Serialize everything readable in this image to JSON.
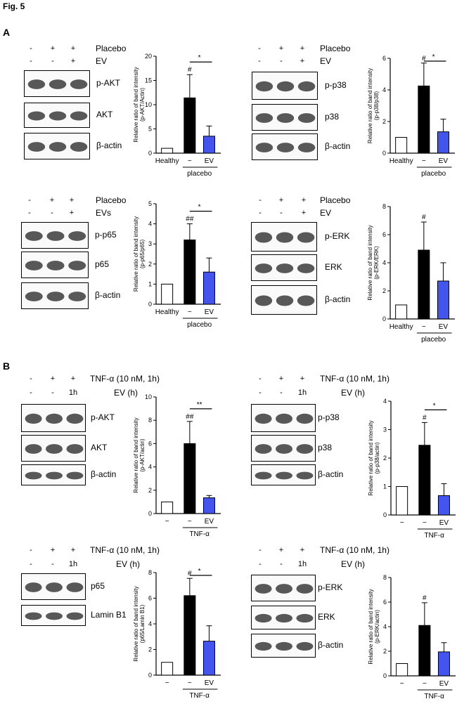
{
  "figure_title": "Fig. 5",
  "sections": {
    "a": "A",
    "b": "B"
  },
  "colors": {
    "healthy": "#ffffff",
    "placebo": "#000000",
    "ev": "#4455ee"
  },
  "panels": [
    {
      "id": "A1",
      "tr_rows": [
        [
          "-",
          "+",
          "+"
        ],
        [
          "-",
          "-",
          "+"
        ]
      ],
      "tr_labels": [
        "Placebo",
        "EV"
      ],
      "blots": [
        "p-AKT",
        "AKT",
        "β-actin"
      ],
      "chart": {
        "ylabel": [
          "Relative ratio of band intensity",
          "(p-AKT/Actin)"
        ],
        "ylim": [
          0,
          20
        ],
        "ticks": [
          "0",
          "5",
          "10",
          "15",
          "20"
        ],
        "values": [
          1,
          11.4,
          3.5
        ],
        "errors": [
          0,
          4.8,
          2.1
        ],
        "marks": [
          "",
          "#",
          ""
        ],
        "sig": "*",
        "xlabels": [
          "Healthy",
          "−",
          "EV"
        ],
        "group": "placebo"
      }
    },
    {
      "id": "A2",
      "tr_rows": [
        [
          "-",
          "+",
          "+"
        ],
        [
          "-",
          "-",
          "+"
        ]
      ],
      "tr_labels": [
        "Placebo",
        "EV"
      ],
      "blots": [
        "p-p38",
        "p38",
        "β-actin"
      ],
      "chart": {
        "ylabel": [
          "Relative ratio of band intensity",
          "(p-p38/p38)"
        ],
        "ylim": [
          0,
          6
        ],
        "ticks": [
          "0",
          "2",
          "4",
          "6"
        ],
        "values": [
          1,
          4.25,
          1.35
        ],
        "errors": [
          0,
          1.45,
          0.8
        ],
        "marks": [
          "",
          "#",
          ""
        ],
        "sig": "*",
        "xlabels": [
          "Healthy",
          "−",
          "EV"
        ],
        "group": "placebo"
      }
    },
    {
      "id": "A3",
      "tr_rows": [
        [
          "-",
          "+",
          "+"
        ],
        [
          "-",
          "-",
          "+"
        ]
      ],
      "tr_labels": [
        "Placebo",
        "EVs"
      ],
      "blots": [
        "p-p65",
        "p65",
        "β-actin"
      ],
      "chart": {
        "ylabel": [
          "Relative ratio of band intensity",
          "(p-p65/p65)"
        ],
        "ylim": [
          0,
          5
        ],
        "ticks": [
          "0",
          "1",
          "2",
          "3",
          "4",
          "5"
        ],
        "values": [
          1,
          3.2,
          1.6
        ],
        "errors": [
          0,
          0.8,
          0.7
        ],
        "marks": [
          "",
          "##",
          ""
        ],
        "sig": "*",
        "xlabels": [
          "Healthy",
          "−",
          "EV"
        ],
        "group": "placebo"
      }
    },
    {
      "id": "A4",
      "tr_rows": [
        [
          "-",
          "+",
          "+"
        ],
        [
          "-",
          "-",
          "+"
        ]
      ],
      "tr_labels": [
        "Placebo",
        "EV"
      ],
      "blots": [
        "p-ERK",
        "ERK",
        "β-actin"
      ],
      "chart": {
        "ylabel": [
          "Relative ratio of band intensity",
          "(p-ERK/ERK)"
        ],
        "ylim": [
          0,
          8
        ],
        "ticks": [
          "0",
          "2",
          "4",
          "6",
          "8"
        ],
        "values": [
          1,
          4.9,
          2.7
        ],
        "errors": [
          0,
          2.0,
          1.3
        ],
        "marks": [
          "",
          "#",
          ""
        ],
        "sig": "",
        "xlabels": [
          "Healthy",
          "−",
          "EV"
        ],
        "group": "placebo"
      }
    },
    {
      "id": "B1",
      "tr_rows": [
        [
          "-",
          "+",
          "+"
        ],
        [
          "-",
          "-",
          "1h"
        ]
      ],
      "tr_labels": [
        "TNF-α (10 nM, 1h)",
        "EV (h)"
      ],
      "blots": [
        "p-AKT",
        "AKT",
        "β-actin"
      ],
      "chart": {
        "ylabel": [
          "Relative ratio of band intensity",
          "(p-AKT/actin)"
        ],
        "ylim": [
          0,
          10
        ],
        "ticks": [
          "0",
          "2",
          "4",
          "6",
          "8",
          "10"
        ],
        "values": [
          1,
          6.0,
          1.35
        ],
        "errors": [
          0,
          1.9,
          0.2
        ],
        "marks": [
          "",
          "##",
          ""
        ],
        "sig": "**",
        "xlabels": [
          "−",
          "−",
          "EV"
        ],
        "group": "TNF-α"
      }
    },
    {
      "id": "B2",
      "tr_rows": [
        [
          "-",
          "+",
          "+"
        ],
        [
          "-",
          "-",
          "1h"
        ]
      ],
      "tr_labels": [
        "TNF-α (10 nM, 1h)",
        "EV (h)"
      ],
      "blots": [
        "p-p38",
        "p38",
        "β-actin"
      ],
      "chart": {
        "ylabel": [
          "Relative ratio of band intensity",
          "(p-p38/actin)"
        ],
        "ylim": [
          0,
          4
        ],
        "ticks": [
          "0",
          "1",
          "2",
          "3",
          "4"
        ],
        "values": [
          1,
          2.45,
          0.68
        ],
        "errors": [
          0,
          0.8,
          0.42
        ],
        "marks": [
          "",
          "#",
          ""
        ],
        "sig": "*",
        "xlabels": [
          "−",
          "−",
          "EV"
        ],
        "group": "TNF-α"
      }
    },
    {
      "id": "B3",
      "tr_rows": [
        [
          "-",
          "+",
          "+"
        ],
        [
          "-",
          "-",
          "1h"
        ]
      ],
      "tr_labels": [
        "TNF-α (10 nM, 1h)",
        "EV (h)"
      ],
      "blots": [
        "p65",
        "Lamin B1"
      ],
      "chart": {
        "ylabel": [
          "Relative ratio of band intensity",
          "(p65/Lamin B1)"
        ],
        "ylim": [
          0,
          8
        ],
        "ticks": [
          "0",
          "2",
          "4",
          "6",
          "8"
        ],
        "values": [
          1,
          6.2,
          2.65
        ],
        "errors": [
          0,
          1.35,
          1.2
        ],
        "marks": [
          "",
          "#",
          ""
        ],
        "sig": "*",
        "xlabels": [
          "−",
          "−",
          "EV"
        ],
        "group": "TNF-α"
      }
    },
    {
      "id": "B4",
      "tr_rows": [
        [
          "-",
          "+",
          "+"
        ],
        [
          "-",
          "-",
          "1h"
        ]
      ],
      "tr_labels": [
        "TNF-α (10 nM, 1h)",
        "EV (h)"
      ],
      "blots": [
        "p-ERK",
        "ERK",
        "β-actin"
      ],
      "chart": {
        "ylabel": [
          "Relative ratio of band intensity",
          "(p-ERK/actin)"
        ],
        "ylim": [
          0,
          8
        ],
        "ticks": [
          "0",
          "2",
          "4",
          "6",
          "8"
        ],
        "values": [
          1,
          4.1,
          1.95
        ],
        "errors": [
          0,
          1.85,
          0.75
        ],
        "marks": [
          "",
          "#",
          ""
        ],
        "sig": "",
        "xlabels": [
          "−",
          "−",
          "EV"
        ],
        "group": "TNF-α"
      }
    }
  ],
  "chart_data": [
    {
      "type": "bar",
      "panel": "A1",
      "categories": [
        "Healthy",
        "placebo −",
        "placebo EV"
      ],
      "values": [
        1,
        11.4,
        3.5
      ],
      "errors": [
        0,
        4.8,
        2.1
      ],
      "ylabel": "Relative ratio of band intensity (p-AKT/Actin)",
      "ylim": [
        0,
        20
      ]
    },
    {
      "type": "bar",
      "panel": "A2",
      "categories": [
        "Healthy",
        "placebo −",
        "placebo EV"
      ],
      "values": [
        1,
        4.25,
        1.35
      ],
      "errors": [
        0,
        1.45,
        0.8
      ],
      "ylabel": "Relative ratio of band intensity (p-p38/p38)",
      "ylim": [
        0,
        6
      ]
    },
    {
      "type": "bar",
      "panel": "A3",
      "categories": [
        "Healthy",
        "placebo −",
        "placebo EV"
      ],
      "values": [
        1,
        3.2,
        1.6
      ],
      "errors": [
        0,
        0.8,
        0.7
      ],
      "ylabel": "Relative ratio of band intensity (p-p65/p65)",
      "ylim": [
        0,
        5
      ]
    },
    {
      "type": "bar",
      "panel": "A4",
      "categories": [
        "Healthy",
        "placebo −",
        "placebo EV"
      ],
      "values": [
        1,
        4.9,
        2.7
      ],
      "errors": [
        0,
        2.0,
        1.3
      ],
      "ylabel": "Relative ratio of band intensity (p-ERK/ERK)",
      "ylim": [
        0,
        8
      ]
    },
    {
      "type": "bar",
      "panel": "B1",
      "categories": [
        "−",
        "TNF-α −",
        "TNF-α EV"
      ],
      "values": [
        1,
        6.0,
        1.35
      ],
      "errors": [
        0,
        1.9,
        0.2
      ],
      "ylabel": "Relative ratio of band intensity (p-AKT/actin)",
      "ylim": [
        0,
        10
      ]
    },
    {
      "type": "bar",
      "panel": "B2",
      "categories": [
        "−",
        "TNF-α −",
        "TNF-α EV"
      ],
      "values": [
        1,
        2.45,
        0.68
      ],
      "errors": [
        0,
        0.8,
        0.42
      ],
      "ylabel": "Relative ratio of band intensity (p-p38/actin)",
      "ylim": [
        0,
        4
      ]
    },
    {
      "type": "bar",
      "panel": "B3",
      "categories": [
        "−",
        "TNF-α −",
        "TNF-α EV"
      ],
      "values": [
        1,
        6.2,
        2.65
      ],
      "errors": [
        0,
        1.35,
        1.2
      ],
      "ylabel": "Relative ratio of band intensity (p65/Lamin B1)",
      "ylim": [
        0,
        8
      ]
    },
    {
      "type": "bar",
      "panel": "B4",
      "categories": [
        "−",
        "TNF-α −",
        "TNF-α EV"
      ],
      "values": [
        1,
        4.1,
        1.95
      ],
      "errors": [
        0,
        1.85,
        0.75
      ],
      "ylabel": "Relative ratio of band intensity (p-ERK/actin)",
      "ylim": [
        0,
        8
      ]
    }
  ]
}
